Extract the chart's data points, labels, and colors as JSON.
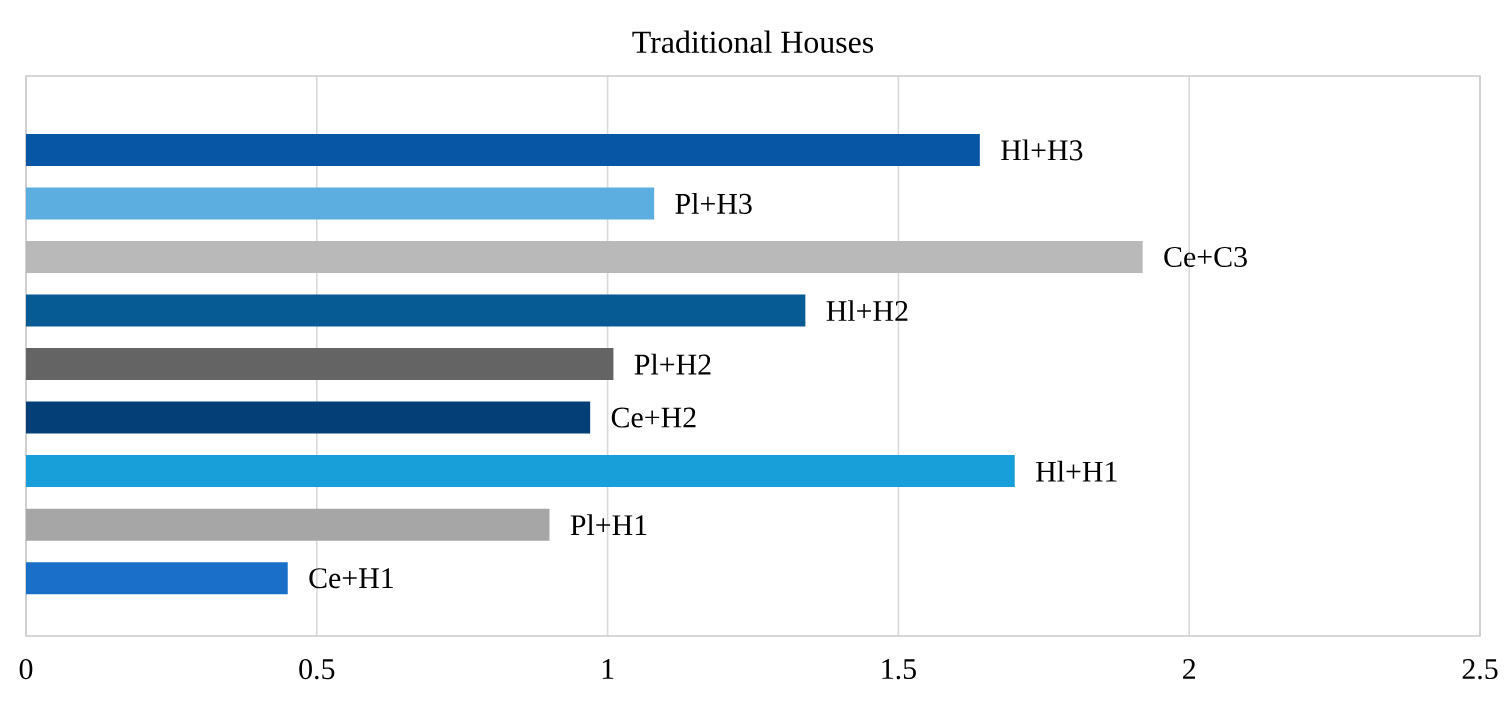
{
  "chart_data": {
    "type": "bar",
    "orientation": "horizontal",
    "title": "Traditional Houses",
    "categories": [
      "Hl+H3",
      "Pl+H3",
      "Ce+C3",
      "Hl+H2",
      "Pl+H2",
      "Ce+H2",
      "Hl+H1",
      "Pl+H1",
      "Ce+H1"
    ],
    "values": [
      1.64,
      1.08,
      1.92,
      1.34,
      1.01,
      0.97,
      1.7,
      0.9,
      0.45
    ],
    "colors": [
      "#0656a5",
      "#5daee0",
      "#b9b9b9",
      "#065b95",
      "#646464",
      "#043f78",
      "#189ed8",
      "#a6a6a6",
      "#1a70c8"
    ],
    "xlim": [
      0,
      2.5
    ],
    "xticks": [
      0,
      0.5,
      1,
      1.5,
      2,
      2.5
    ],
    "grid": "x"
  }
}
